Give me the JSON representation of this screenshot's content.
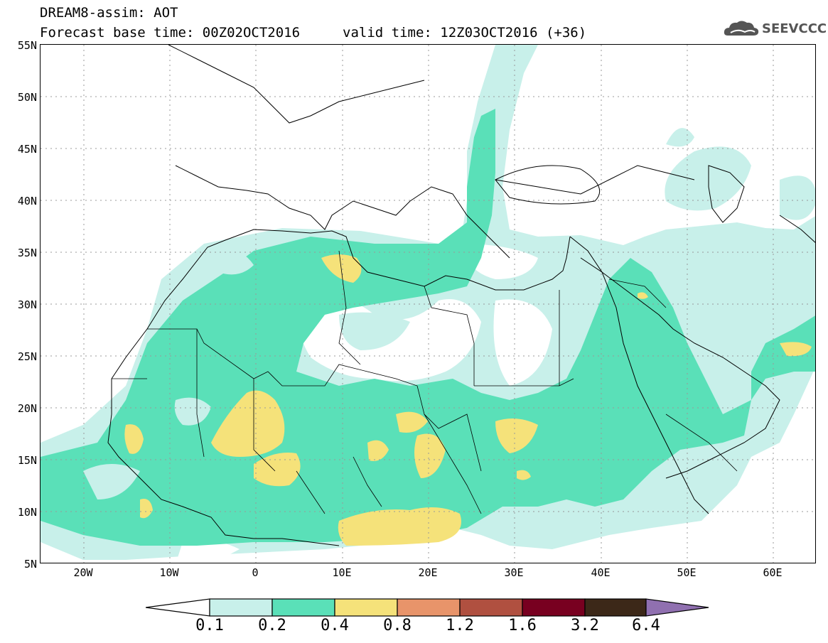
{
  "title": {
    "line1": "DREAM8-assim: AOT",
    "base": "Forecast base time: 00Z02OCT2016",
    "valid": "valid time: 12Z03OCT2016 (+36)"
  },
  "logo": {
    "text": "SEEVCCC",
    "icon": "cloud-icon"
  },
  "map": {
    "lat_labels": [
      "55N",
      "50N",
      "45N",
      "40N",
      "35N",
      "30N",
      "25N",
      "20N",
      "15N",
      "10N",
      "5N"
    ],
    "lon_labels": [
      "20W",
      "10W",
      "0",
      "10E",
      "20E",
      "30E",
      "40E",
      "50E",
      "60E"
    ],
    "extent": {
      "lon": [
        -25,
        65
      ],
      "lat": [
        5,
        55
      ]
    }
  },
  "colorbar": {
    "levels": [
      "0.1",
      "0.2",
      "0.4",
      "0.8",
      "1.2",
      "1.6",
      "3.2",
      "6.4"
    ],
    "colors": [
      "#c8f0ea",
      "#5ae0b8",
      "#f5e27a",
      "#e8946a",
      "#b05040",
      "#780020",
      "#3c2818",
      "#9070b0"
    ]
  }
}
